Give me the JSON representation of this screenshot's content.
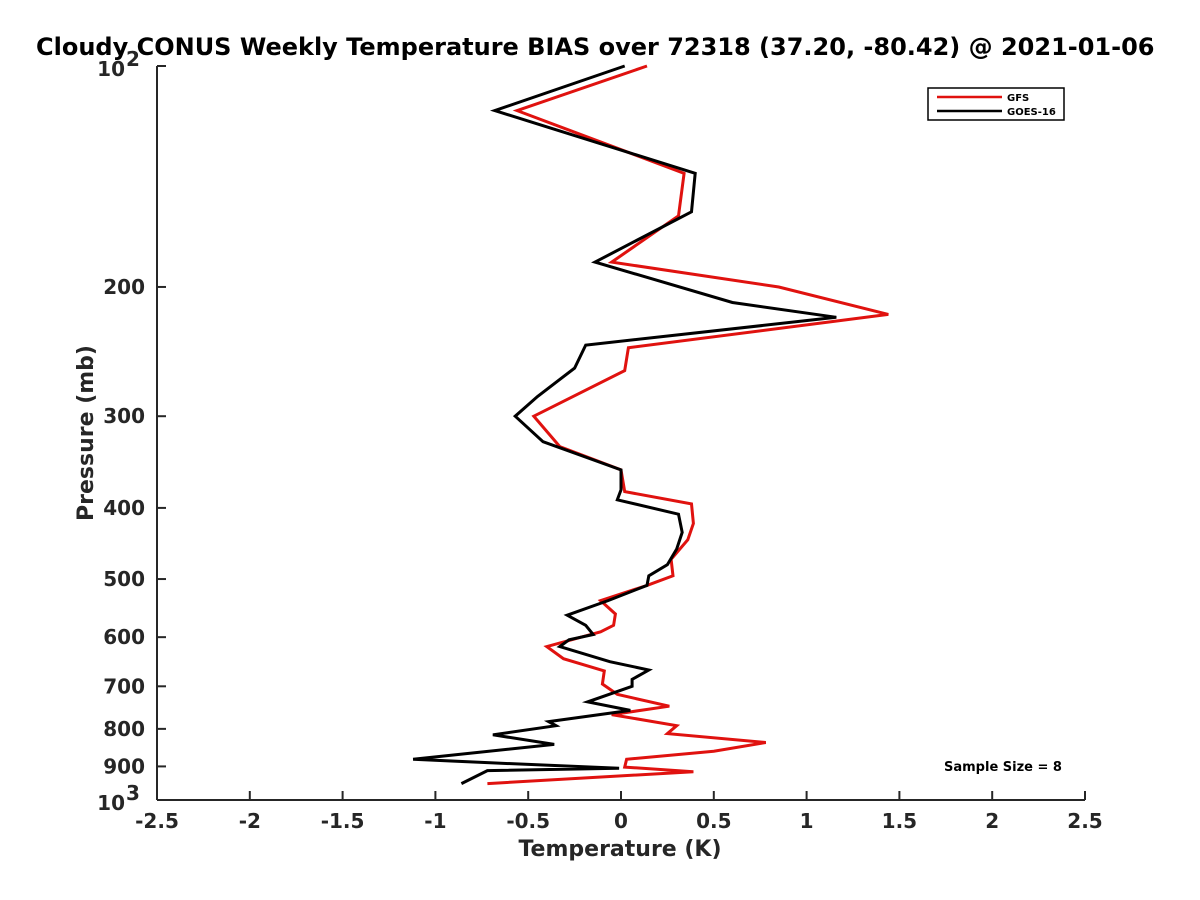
{
  "chart_data": {
    "type": "line",
    "title": "Cloudy CONUS Weekly Temperature BIAS over 72318 (37.20, -80.42) @ 2021-01-06",
    "xlabel": "Temperature (K)",
    "ylabel": "Pressure (mb)",
    "xlim": [
      -2.5,
      2.5
    ],
    "ylim": [
      100,
      1000
    ],
    "yscale": "log",
    "y_reversed": true,
    "x_ticks": [
      "-2.5",
      "-2",
      "-1.5",
      "-1",
      "-0.5",
      "0",
      "0.5",
      "1",
      "1.5",
      "2",
      "2.5"
    ],
    "y_ticks": [
      {
        "value": 200,
        "label": "200"
      },
      {
        "value": 300,
        "label": "300"
      },
      {
        "value": 400,
        "label": "400"
      },
      {
        "value": 500,
        "label": "500"
      },
      {
        "value": 600,
        "label": "600"
      },
      {
        "value": 700,
        "label": "700"
      },
      {
        "value": 800,
        "label": "800"
      },
      {
        "value": 900,
        "label": "900"
      }
    ],
    "y_tick_ends": [
      {
        "value": 100,
        "base": "10",
        "exp": "2"
      },
      {
        "value": 1000,
        "base": "10",
        "exp": "3"
      }
    ],
    "legend": {
      "placement": "top-right",
      "entries": [
        "GFS",
        "GOES-16"
      ]
    },
    "annotation": "Sample Size = 8",
    "series": [
      {
        "name": "GFS",
        "color": "#e0120f",
        "x": [
          0.14,
          -0.56,
          0.34,
          0.31,
          -0.05,
          0.85,
          1.44,
          0.04,
          0.02,
          -0.47,
          -0.33,
          0.0,
          0.02,
          0.38,
          0.39,
          0.36,
          0.27,
          0.28,
          0.14,
          -0.11,
          -0.03,
          -0.04,
          -0.11,
          -0.4,
          -0.31,
          -0.09,
          -0.1,
          -0.02,
          0.26,
          -0.05,
          0.3,
          0.25,
          0.78,
          0.5,
          0.03,
          0.02,
          0.39,
          -0.72
        ],
        "y": [
          100,
          115,
          140,
          160,
          185,
          200,
          218,
          242,
          260,
          300,
          330,
          355,
          380,
          395,
          420,
          442,
          470,
          495,
          510,
          535,
          558,
          578,
          590,
          618,
          642,
          667,
          695,
          718,
          745,
          765,
          792,
          812,
          835,
          858,
          880,
          902,
          915,
          950
        ]
      },
      {
        "name": "GOES-16",
        "color": "#000000",
        "x": [
          0.02,
          -0.68,
          0.4,
          0.38,
          -0.14,
          0.6,
          1.16,
          -0.19,
          -0.25,
          -0.45,
          -0.57,
          -0.42,
          0.0,
          0.0,
          -0.02,
          0.31,
          0.33,
          0.3,
          0.25,
          0.15,
          0.14,
          -0.07,
          -0.29,
          -0.19,
          -0.15,
          -0.28,
          -0.33,
          -0.06,
          0.15,
          0.06,
          0.06,
          -0.18,
          0.05,
          -0.39,
          -0.35,
          -0.69,
          -0.36,
          -1.12,
          -0.69,
          -0.01,
          -0.72,
          -0.86
        ],
        "y": [
          100,
          115,
          140,
          158,
          185,
          210,
          220,
          240,
          258,
          282,
          300,
          325,
          355,
          378,
          390,
          408,
          432,
          455,
          478,
          495,
          510,
          535,
          560,
          578,
          595,
          605,
          618,
          648,
          665,
          685,
          700,
          735,
          755,
          782,
          792,
          815,
          840,
          880,
          890,
          905,
          912,
          950
        ]
      }
    ]
  }
}
